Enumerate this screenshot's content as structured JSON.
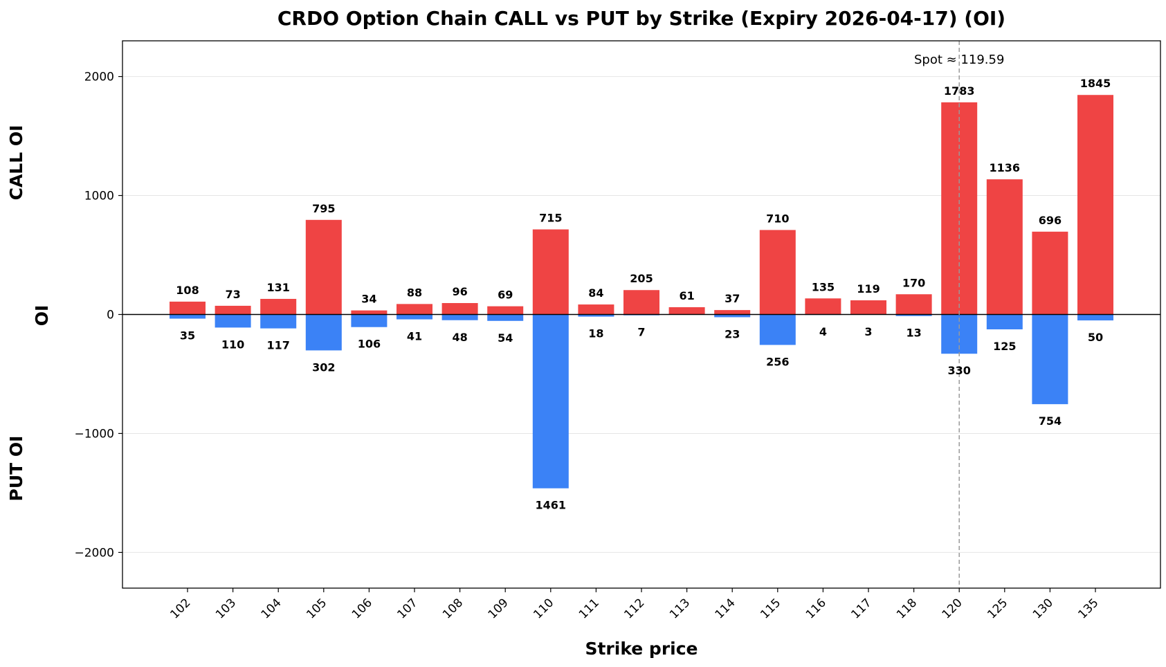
{
  "chart_data": {
    "type": "bar",
    "title": "CRDO Option Chain CALL vs PUT by Strike (Expiry 2026-04-17) (OI)",
    "xlabel": "Strike price",
    "ylabel": "OI",
    "ylabel_upper": "CALL OI",
    "ylabel_lower": "PUT OI",
    "categories": [
      "102",
      "103",
      "104",
      "105",
      "106",
      "107",
      "108",
      "109",
      "110",
      "111",
      "112",
      "113",
      "114",
      "115",
      "116",
      "117",
      "118",
      "120",
      "125",
      "130",
      "135"
    ],
    "series": [
      {
        "name": "CALL OI",
        "color": "#ef4444",
        "values": [
          108,
          73,
          131,
          795,
          34,
          88,
          96,
          69,
          715,
          84,
          205,
          61,
          37,
          710,
          135,
          119,
          170,
          1783,
          1136,
          696,
          1845
        ]
      },
      {
        "name": "PUT OI",
        "color": "#3b82f6",
        "values": [
          35,
          110,
          117,
          302,
          106,
          41,
          48,
          54,
          1461,
          18,
          7,
          null,
          23,
          256,
          4,
          3,
          13,
          330,
          125,
          754,
          50
        ]
      }
    ],
    "ylim": [
      -2300,
      2300
    ],
    "yticks": [
      -2000,
      -1000,
      0,
      1000,
      2000
    ],
    "ytick_labels": [
      "−2000",
      "−1000",
      "0",
      "1000",
      "2000"
    ],
    "grid": true,
    "spot": {
      "value": 119.59,
      "label": "Spot ≈ 119.59",
      "category_position": 17
    }
  }
}
